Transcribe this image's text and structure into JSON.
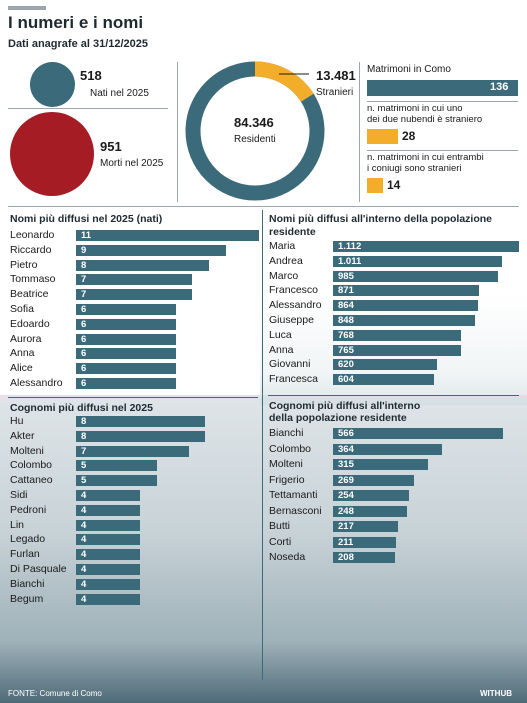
{
  "header": {
    "title": "I numeri e i nomi",
    "subtitle": "Dati anagrafe al 31/12/2025"
  },
  "births": {
    "value": "518",
    "label": "Nati nel 2025"
  },
  "deaths": {
    "value": "951",
    "label": "Morti nel 2025"
  },
  "residents": {
    "value": "84.346",
    "label": "Residenti",
    "foreign_value": "13.481",
    "foreign_label": "Stranieri"
  },
  "marriages": {
    "total_label": "Matrimoni in Como",
    "total_value": "136",
    "one_foreign_label_1": "n. matrimoni in cui uno",
    "one_foreign_label_2": "dei due nubendi è straniero",
    "one_foreign_value": "28",
    "both_foreign_label_1": "n. matrimoni in cui entrambi",
    "both_foreign_label_2": "i coniugi sono stranieri",
    "both_foreign_value": "14"
  },
  "colors": {
    "teal": "#3b6b7b",
    "dark_red": "#a51c24",
    "orange": "#f2ad2a"
  },
  "footer": {
    "source": "FONTE: Comune di Como",
    "logo": "WITHUB"
  },
  "chart_data": [
    {
      "type": "pie",
      "title": "",
      "values": [
        {
          "label": "Residenti",
          "value": 84346
        },
        {
          "label": "Stranieri",
          "value": 13481
        }
      ]
    },
    {
      "type": "bar",
      "title": "Nomi più diffusi nel 2025 (nati)",
      "categories": [
        "Leonardo",
        "Riccardo",
        "Pietro",
        "Tommaso",
        "Beatrice",
        "Sofia",
        "Edoardo",
        "Aurora",
        "Anna",
        "Alice",
        "Alessandro"
      ],
      "values": [
        11,
        9,
        8,
        7,
        7,
        6,
        6,
        6,
        6,
        6,
        6
      ],
      "labels": [
        "11",
        "9",
        "8",
        "7",
        "7",
        "6",
        "6",
        "6",
        "6",
        "6",
        "6"
      ]
    },
    {
      "type": "bar",
      "title_1": "Nomi più diffusi all'interno della popolazione",
      "title_2": "residente",
      "categories": [
        "Maria",
        "Andrea",
        "Marco",
        "Francesco",
        "Alessandro",
        "Giuseppe",
        "Luca",
        "Anna",
        "Giovanni",
        "Francesca"
      ],
      "values": [
        1112,
        1011,
        985,
        871,
        864,
        848,
        768,
        765,
        620,
        604
      ],
      "labels": [
        "1.112",
        "1.011",
        "985",
        "871",
        "864",
        "848",
        "768",
        "765",
        "620",
        "604"
      ]
    },
    {
      "type": "bar",
      "title": "Cognomi più diffusi nel 2025",
      "categories": [
        "Hu",
        "Akter",
        "Molteni",
        "Colombo",
        "Cattaneo",
        "Sidi",
        "Pedroni",
        "Lin",
        "Legado",
        "Furlan",
        "Di Pasquale",
        "Bianchi",
        "Begum"
      ],
      "values": [
        8,
        8,
        7,
        5,
        5,
        4,
        4,
        4,
        4,
        4,
        4,
        4,
        4
      ],
      "labels": [
        "8",
        "8",
        "7",
        "5",
        "5",
        "4",
        "4",
        "4",
        "4",
        "4",
        "4",
        "4",
        "4"
      ]
    },
    {
      "type": "bar",
      "title_1": "Cognomi più diffusi all'interno",
      "title_2": "della popolazione residente",
      "categories": [
        "Bianchi",
        "Colombo",
        "Molteni",
        "Frigerio",
        "Tettamanti",
        "Bernasconi",
        "Butti",
        "Corti",
        "Noseda"
      ],
      "values": [
        566,
        364,
        315,
        269,
        254,
        248,
        217,
        211,
        208
      ],
      "labels": [
        "566",
        "364",
        "315",
        "269",
        "254",
        "248",
        "217",
        "211",
        "208"
      ]
    },
    {
      "type": "bar",
      "title": "",
      "categories": [
        "Matrimoni in Como",
        "n. matrimoni in cui uno dei due nubendi è straniero",
        "n. matrimoni in cui entrambi i coniugi sono stranieri"
      ],
      "values": [
        136,
        28,
        14
      ],
      "labels": [
        "136",
        "28",
        "14"
      ]
    }
  ]
}
